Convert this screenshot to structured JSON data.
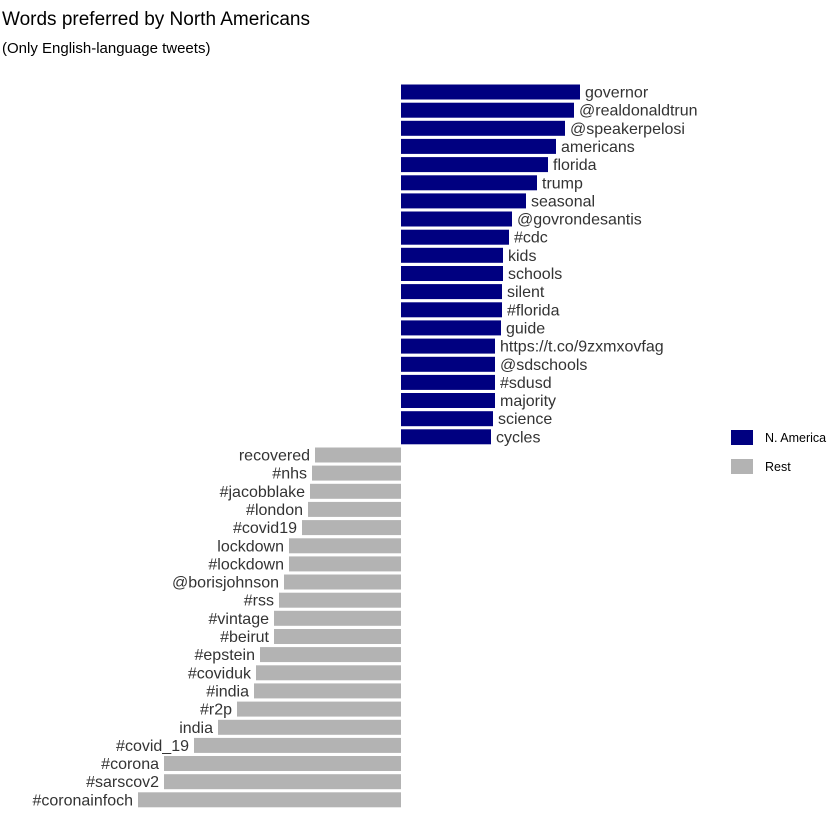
{
  "chart_data": {
    "type": "bar",
    "orientation": "horizontal-diverging",
    "title": "Words preferred by North Americans",
    "subtitle": "(Only English-language tweets)",
    "xlabel": "",
    "ylabel": "",
    "grid": false,
    "legend_position": "right",
    "colors": {
      "N. America": "#000080",
      "Rest": "#b3b3b3"
    },
    "series": [
      {
        "name": "N. America",
        "categories": [
          "governor",
          "@realdonaldtrun",
          "@speakerpelosi",
          "americans",
          "florida",
          "trump",
          "seasonal",
          "@govrondesantis",
          "#cdc",
          "kids",
          "schools",
          "silent",
          "#florida",
          "guide",
          "https://t.co/9zxmxovfag",
          "@sdschools",
          "#sdusd",
          "majority",
          "science",
          "cycles"
        ],
        "values": [
          1.79,
          1.73,
          1.64,
          1.55,
          1.47,
          1.36,
          1.25,
          1.11,
          1.08,
          1.02,
          1.02,
          1.01,
          1.01,
          1.0,
          0.94,
          0.94,
          0.94,
          0.94,
          0.92,
          0.9
        ]
      },
      {
        "name": "Rest",
        "categories": [
          "recovered",
          "#nhs",
          "#jacobblake",
          "#london",
          "#covid19",
          "lockdown",
          "#lockdown",
          "@borisjohnson",
          "#rss",
          "#vintage",
          "#beirut",
          "#epstein",
          "#coviduk",
          "#india",
          "#r2p",
          "india",
          "#covid_19",
          "#corona",
          "#sarscov2",
          "#coronainfoch"
        ],
        "values": [
          -0.86,
          -0.89,
          -0.91,
          -0.93,
          -0.99,
          -1.12,
          -1.12,
          -1.17,
          -1.22,
          -1.27,
          -1.27,
          -1.41,
          -1.45,
          -1.47,
          -1.64,
          -1.83,
          -2.07,
          -2.37,
          -2.37,
          -2.63
        ]
      }
    ]
  }
}
